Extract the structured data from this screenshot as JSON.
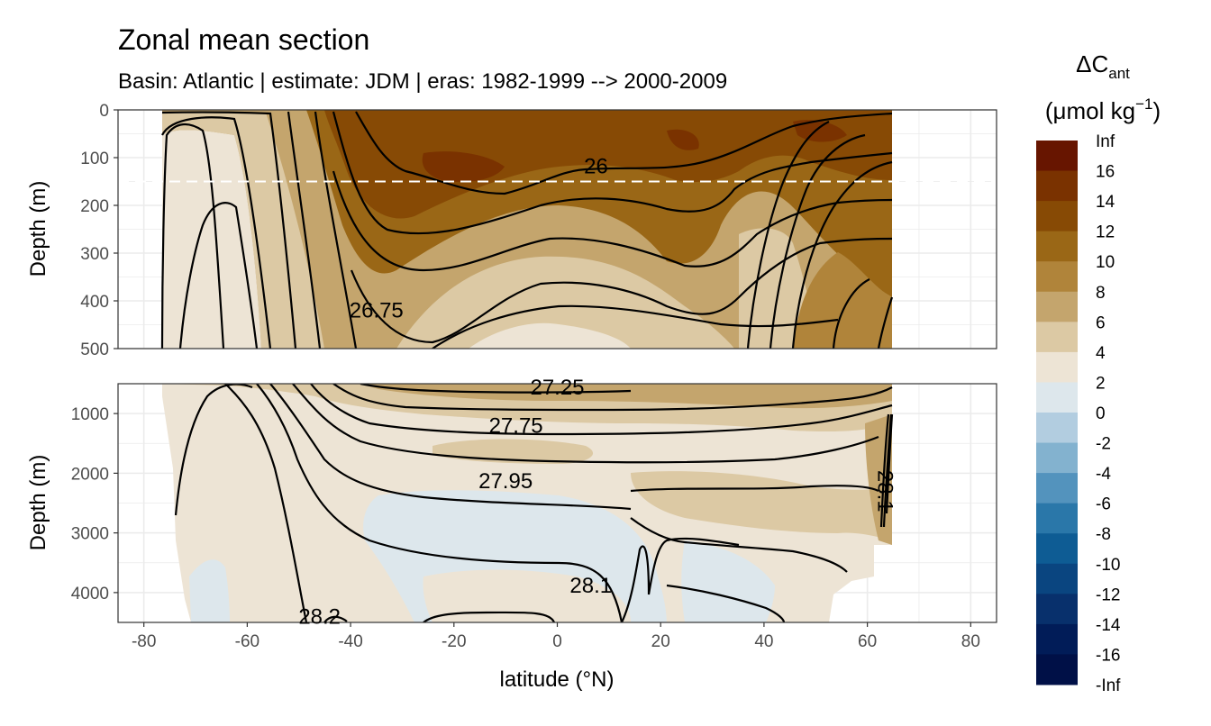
{
  "chart_data": {
    "type": "heatmap",
    "title": "Zonal mean section",
    "subtitle": "Basin: Atlantic | estimate: JDM  | eras: 1982-1999 --> 2000-2009",
    "xlabel": "latitude (°N)",
    "ylabel_top": "Depth (m)",
    "ylabel_bottom": "Depth (m)",
    "xlim": [
      -85,
      85
    ],
    "x_ticks": [
      -80,
      -60,
      -40,
      -20,
      0,
      20,
      40,
      60,
      80
    ],
    "x_tick_labels": [
      "-80",
      "-60",
      "-40",
      "-20",
      "0",
      "20",
      "40",
      "60",
      "80"
    ],
    "top_panel": {
      "ylim": [
        0,
        500
      ],
      "y_ticks": [
        0,
        100,
        200,
        300,
        400,
        500
      ],
      "y_tick_labels": [
        "0",
        "100",
        "200",
        "300",
        "400",
        "500"
      ],
      "reference_line_depth": 150
    },
    "bottom_panel": {
      "ylim": [
        500,
        4500
      ],
      "y_ticks": [
        1000,
        2000,
        3000,
        4000
      ],
      "y_tick_labels": [
        "1000",
        "2000",
        "3000",
        "4000"
      ]
    },
    "contour_labels": [
      {
        "text": "26",
        "lat": 7.5,
        "depth": 118,
        "panel": "top"
      },
      {
        "text": "26.75",
        "lat": -35,
        "depth": 420,
        "panel": "top"
      },
      {
        "text": "27.25",
        "lat": 0,
        "depth": 560,
        "panel": "bottom"
      },
      {
        "text": "27.75",
        "lat": -8,
        "depth": 1200,
        "panel": "bottom"
      },
      {
        "text": "27.95",
        "lat": -10,
        "depth": 2130,
        "panel": "bottom"
      },
      {
        "text": "28.1",
        "lat": 6.5,
        "depth": 3880,
        "panel": "bottom"
      },
      {
        "text": "28.2",
        "lat": -46,
        "depth": 4400,
        "panel": "bottom"
      },
      {
        "text": "28.1",
        "lat": 63.5,
        "depth": 2300,
        "panel": "bottom"
      }
    ],
    "legend": {
      "title": "ΔC",
      "title_sub": "ant",
      "units": "(μmol kg",
      "units_sup": "−1",
      "units_end": ")",
      "labels": [
        "Inf",
        "16",
        "14",
        "12",
        "10",
        "8",
        "6",
        "4",
        "2",
        "0",
        "-2",
        "-4",
        "-6",
        "-8",
        "-10",
        "-12",
        "-14",
        "-16",
        "-Inf"
      ],
      "colors": [
        "#671500",
        "#7a3200",
        "#874a05",
        "#9a6716",
        "#b0843a",
        "#c4a56d",
        "#dcc9a4",
        "#ede4d5",
        "#dde7ec",
        "#b2cde0",
        "#83b2cf",
        "#5393bd",
        "#2a77a9",
        "#0e5c94",
        "#0a4580",
        "#08306c",
        "#011c58",
        "#001047"
      ]
    }
  }
}
